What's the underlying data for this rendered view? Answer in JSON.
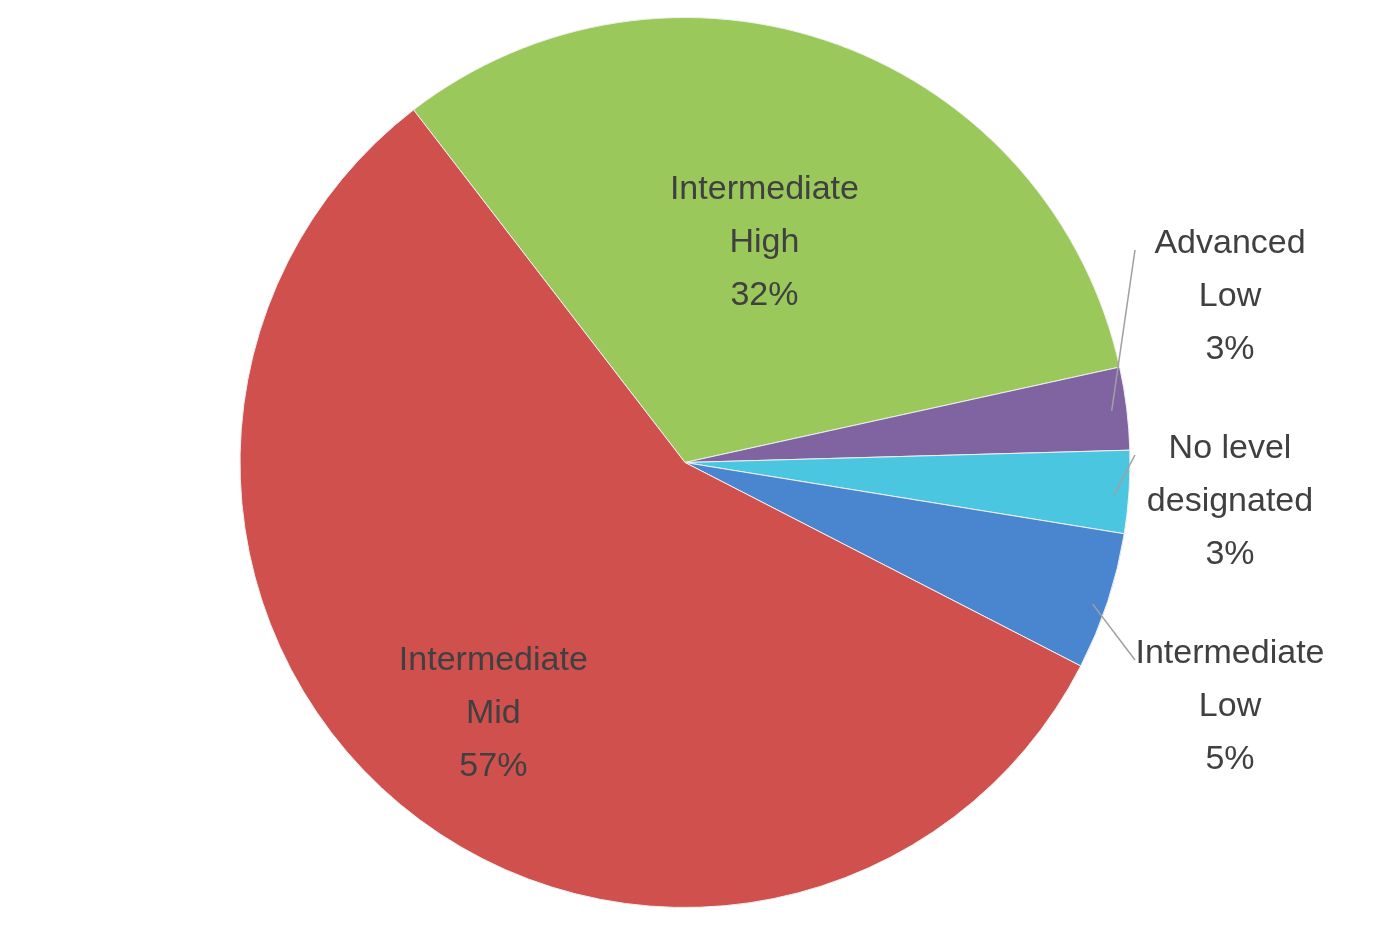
{
  "chart_data": {
    "type": "pie",
    "categories": [
      "Intermediate High",
      "Advanced Low",
      "No level designated",
      "Intermediate Low",
      "Intermediate Mid"
    ],
    "values": [
      32,
      3,
      3,
      5,
      57
    ],
    "colors": [
      "#9bc85a",
      "#8064a2",
      "#4bc6e0",
      "#4a86d0",
      "#d0504d"
    ],
    "value_labels": [
      "32%",
      "3%",
      "3%",
      "5%",
      "57%"
    ]
  }
}
